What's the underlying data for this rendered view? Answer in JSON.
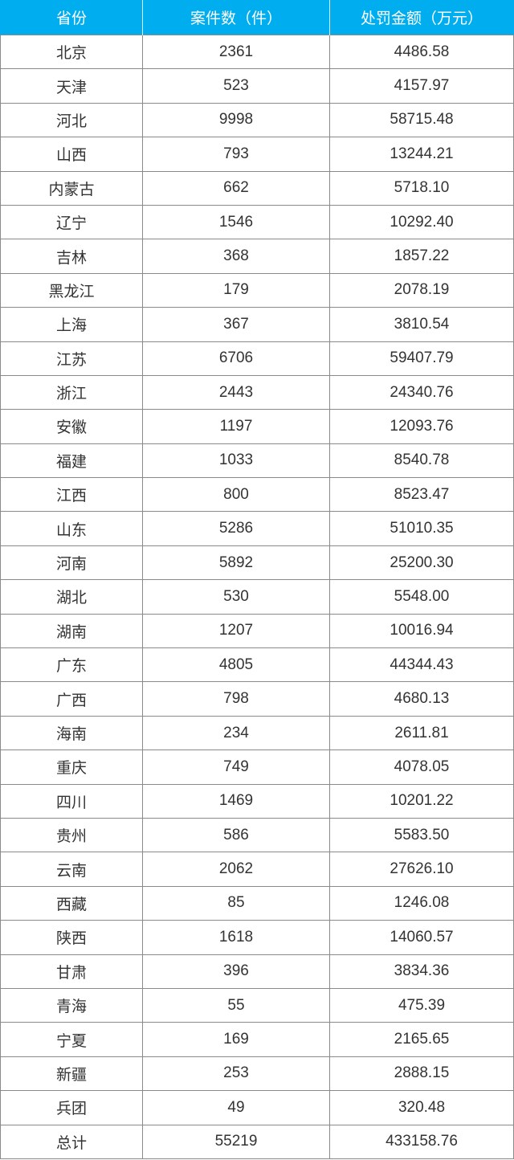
{
  "table": {
    "headers": [
      "省份",
      "案件数（件）",
      "处罚金额（万元）"
    ],
    "header_color": "#00aeef",
    "rows": [
      [
        "北京",
        "2361",
        "4486.58"
      ],
      [
        "天津",
        "523",
        "4157.97"
      ],
      [
        "河北",
        "9998",
        "58715.48"
      ],
      [
        "山西",
        "793",
        "13244.21"
      ],
      [
        "内蒙古",
        "662",
        "5718.10"
      ],
      [
        "辽宁",
        "1546",
        "10292.40"
      ],
      [
        "吉林",
        "368",
        "1857.22"
      ],
      [
        "黑龙江",
        "179",
        "2078.19"
      ],
      [
        "上海",
        "367",
        "3810.54"
      ],
      [
        "江苏",
        "6706",
        "59407.79"
      ],
      [
        "浙江",
        "2443",
        "24340.76"
      ],
      [
        "安徽",
        "1197",
        "12093.76"
      ],
      [
        "福建",
        "1033",
        "8540.78"
      ],
      [
        "江西",
        "800",
        "8523.47"
      ],
      [
        "山东",
        "5286",
        "51010.35"
      ],
      [
        "河南",
        "5892",
        "25200.30"
      ],
      [
        "湖北",
        "530",
        "5548.00"
      ],
      [
        "湖南",
        "1207",
        "10016.94"
      ],
      [
        "广东",
        "4805",
        "44344.43"
      ],
      [
        "广西",
        "798",
        "4680.13"
      ],
      [
        "海南",
        "234",
        "2611.81"
      ],
      [
        "重庆",
        "749",
        "4078.05"
      ],
      [
        "四川",
        "1469",
        "10201.22"
      ],
      [
        "贵州",
        "586",
        "5583.50"
      ],
      [
        "云南",
        "2062",
        "27626.10"
      ],
      [
        "西藏",
        "85",
        "1246.08"
      ],
      [
        "陕西",
        "1618",
        "14060.57"
      ],
      [
        "甘肃",
        "396",
        "3834.36"
      ],
      [
        "青海",
        "55",
        "475.39"
      ],
      [
        "宁夏",
        "169",
        "2165.65"
      ],
      [
        "新疆",
        "253",
        "2888.15"
      ],
      [
        "兵团",
        "49",
        "320.48"
      ],
      [
        "总计",
        "55219",
        "433158.76"
      ]
    ]
  }
}
